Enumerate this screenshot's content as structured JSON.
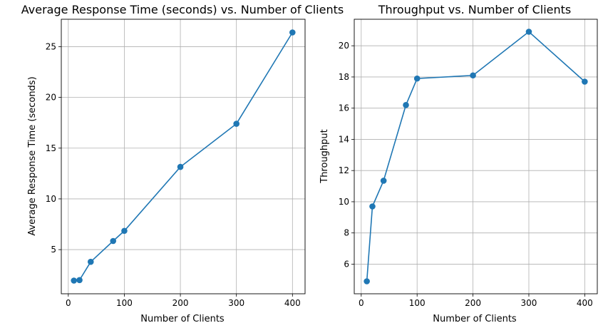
{
  "chart_data": [
    {
      "type": "line",
      "title": "Average Response Time (seconds) vs. Number of Clients",
      "xlabel": "Number of Clients",
      "ylabel": "Average Response Time (seconds)",
      "x": [
        10,
        20,
        40,
        80,
        100,
        200,
        300,
        400
      ],
      "series": [
        {
          "values": [
            1.95,
            2.0,
            3.8,
            5.85,
            6.85,
            13.15,
            17.4,
            26.4
          ]
        }
      ],
      "xlim": [
        -12.5,
        422.5
      ],
      "ylim": [
        0.65,
        27.7
      ],
      "xticks": [
        0,
        100,
        200,
        300,
        400
      ],
      "yticks": [
        5,
        10,
        15,
        20,
        25
      ],
      "grid": true,
      "color": "#1f77b4"
    },
    {
      "type": "line",
      "title": "Throughput vs. Number of Clients",
      "xlabel": "Number of Clients",
      "ylabel": "Throughput",
      "x": [
        10,
        20,
        40,
        80,
        100,
        200,
        300,
        400
      ],
      "series": [
        {
          "values": [
            4.9,
            9.7,
            11.35,
            16.2,
            17.9,
            18.1,
            20.9,
            17.7
          ]
        }
      ],
      "xlim": [
        -12.5,
        422.5
      ],
      "ylim": [
        4.1,
        21.7
      ],
      "xticks": [
        0,
        100,
        200,
        300,
        400
      ],
      "yticks": [
        6,
        8,
        10,
        12,
        14,
        16,
        18,
        20
      ],
      "grid": true,
      "color": "#1f77b4"
    }
  ]
}
